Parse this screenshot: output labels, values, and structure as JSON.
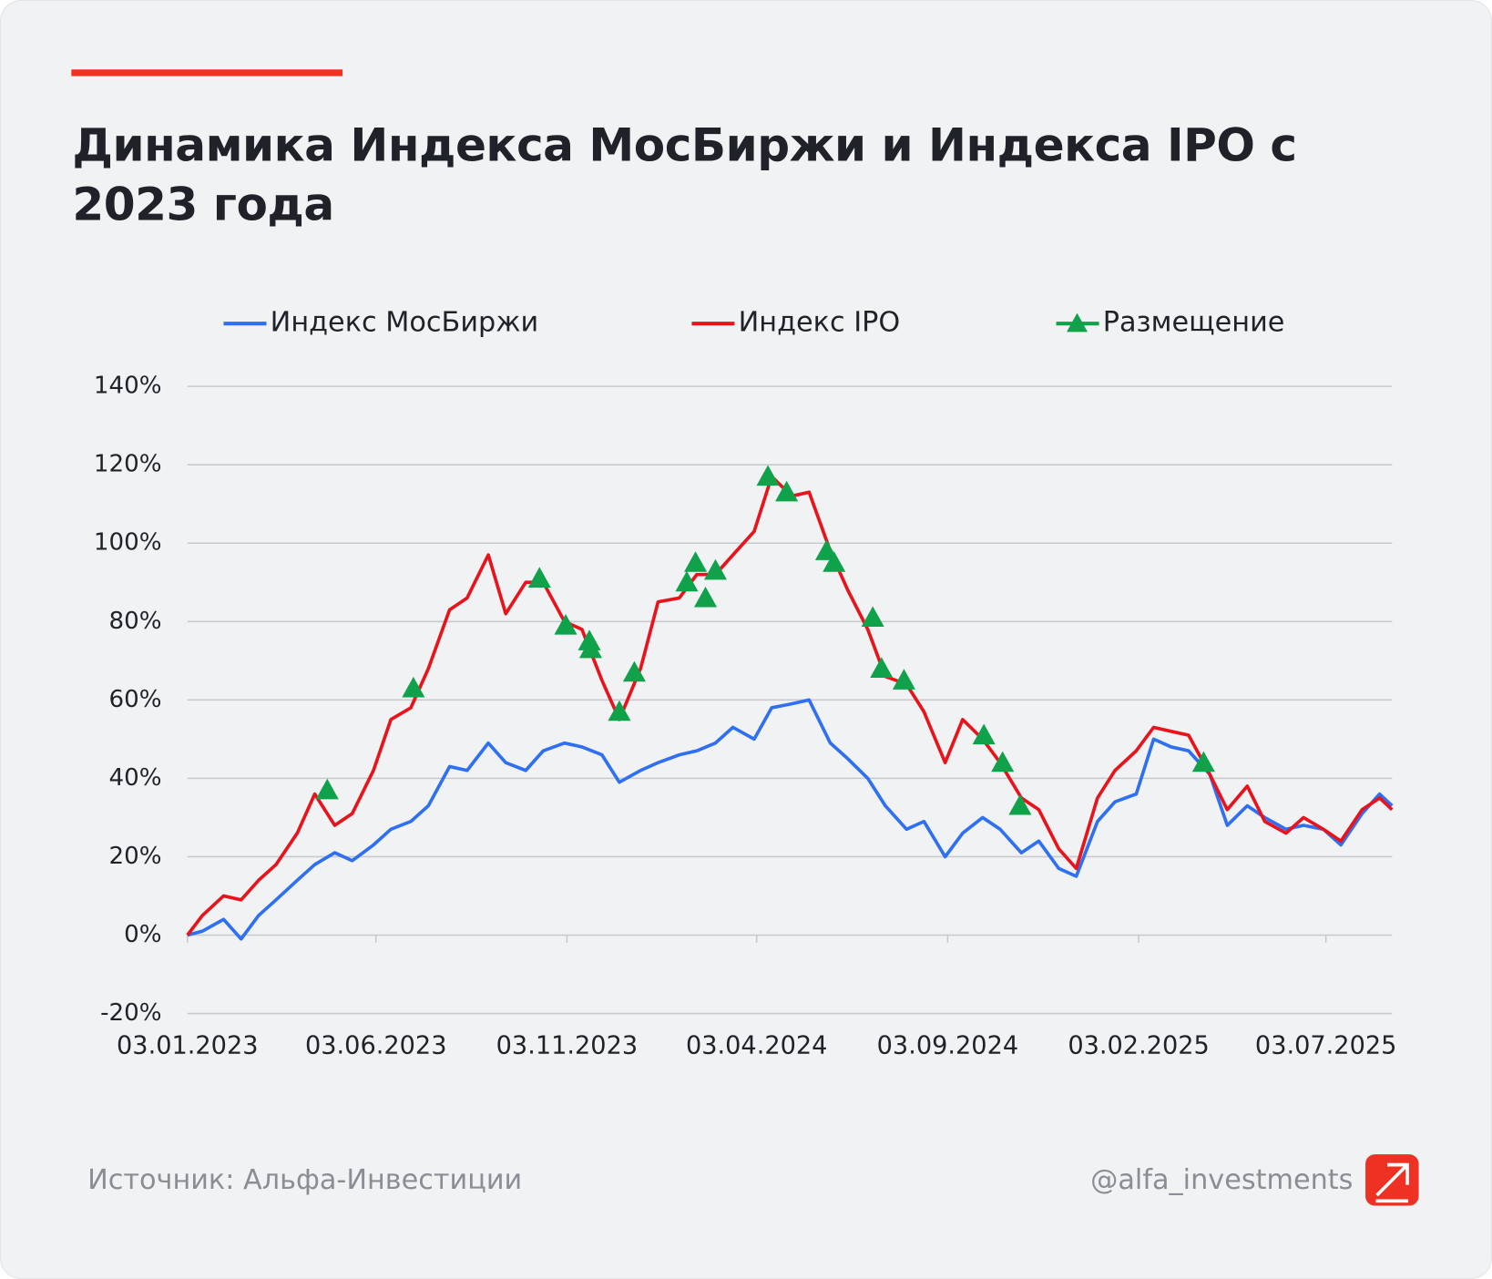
{
  "chart_data": {
    "type": "line",
    "title": "Динамика Индекса МосБиржи и Индекса IPO с 2023 года",
    "xlim": [
      "03.01.2023",
      "25.08.2025"
    ],
    "xticks": [
      "03.01.2023",
      "03.06.2023",
      "03.11.2023",
      "03.04.2024",
      "03.09.2024",
      "03.02.2025",
      "03.07.2025"
    ],
    "ylim": [
      -20,
      140
    ],
    "yticks": [
      {
        "value": -20,
        "label": "-20%"
      },
      {
        "value": 0,
        "label": "0%"
      },
      {
        "value": 20,
        "label": "20%"
      },
      {
        "value": 40,
        "label": "40%"
      },
      {
        "value": 60,
        "label": "60%"
      },
      {
        "value": 80,
        "label": "80%"
      },
      {
        "value": 100,
        "label": "100%"
      },
      {
        "value": 120,
        "label": "120%"
      },
      {
        "value": 140,
        "label": "140%"
      }
    ],
    "grid": true,
    "x": [
      "03.01.2023",
      "15.01.2023",
      "01.02.2023",
      "15.02.2023",
      "01.03.2023",
      "15.03.2023",
      "01.04.2023",
      "15.04.2023",
      "01.05.2023",
      "15.05.2023",
      "01.06.2023",
      "15.06.2023",
      "01.07.2023",
      "15.07.2023",
      "01.08.2023",
      "15.08.2023",
      "01.09.2023",
      "15.09.2023",
      "01.10.2023",
      "15.10.2023",
      "01.11.2023",
      "15.11.2023",
      "01.12.2023",
      "15.12.2023",
      "01.01.2024",
      "15.01.2024",
      "01.02.2024",
      "15.02.2024",
      "01.03.2024",
      "15.03.2024",
      "01.04.2024",
      "15.04.2024",
      "01.05.2024",
      "15.05.2024",
      "01.06.2024",
      "15.06.2024",
      "01.07.2024",
      "15.07.2024",
      "01.08.2024",
      "15.08.2024",
      "01.09.2024",
      "15.09.2024",
      "01.10.2024",
      "15.10.2024",
      "01.11.2024",
      "15.11.2024",
      "01.12.2024",
      "15.12.2024",
      "01.01.2025",
      "15.01.2025",
      "01.02.2025",
      "15.02.2025",
      "01.03.2025",
      "15.03.2025",
      "01.04.2025",
      "15.04.2025",
      "01.05.2025",
      "15.05.2025",
      "01.06.2025",
      "15.06.2025",
      "01.07.2025",
      "15.07.2025",
      "01.08.2025",
      "15.08.2025",
      "25.08.2025"
    ],
    "series": [
      {
        "name": "Индекс МосБиржи",
        "color": "#2f6ff2",
        "values": [
          0,
          1,
          4,
          -1,
          5,
          9,
          14,
          18,
          21,
          19,
          23,
          27,
          29,
          33,
          43,
          42,
          49,
          44,
          42,
          47,
          49,
          48,
          46,
          39,
          42,
          44,
          46,
          47,
          49,
          53,
          50,
          58,
          59,
          60,
          49,
          45,
          40,
          33,
          27,
          29,
          20,
          26,
          30,
          27,
          21,
          24,
          17,
          15,
          29,
          34,
          36,
          50,
          48,
          47,
          41,
          28,
          33,
          30,
          27,
          28,
          27,
          23,
          31,
          36,
          33
        ]
      },
      {
        "name": "Индекс IPO",
        "color": "#e8131b",
        "values": [
          0,
          5,
          10,
          9,
          14,
          18,
          26,
          36,
          28,
          31,
          42,
          55,
          58,
          68,
          83,
          86,
          97,
          82,
          90,
          90,
          80,
          78,
          65,
          55,
          68,
          85,
          86,
          92,
          92,
          97,
          103,
          117,
          112,
          113,
          98,
          88,
          78,
          66,
          64,
          57,
          44,
          55,
          50,
          44,
          35,
          32,
          22,
          17,
          35,
          42,
          47,
          53,
          52,
          51,
          41,
          32,
          38,
          29,
          26,
          30,
          27,
          24,
          32,
          35,
          32
        ]
      },
      {
        "name": "Размещение",
        "type": "scatter",
        "color": "#0fa24a",
        "x": [
          "25.04.2023",
          "03.07.2023",
          "12.10.2023",
          "02.11.2023",
          "21.11.2023",
          "22.11.2023",
          "15.12.2023",
          "27.12.2023",
          "07.02.2024",
          "14.02.2024",
          "22.02.2024",
          "01.03.2024",
          "12.04.2024",
          "27.04.2024",
          "29.05.2024",
          "04.06.2024",
          "05.07.2024",
          "12.07.2024",
          "30.07.2024",
          "02.10.2024",
          "17.10.2024",
          "31.10.2024",
          "27.03.2025"
        ],
        "values": [
          37,
          63,
          91,
          79,
          75,
          73,
          57,
          67,
          90,
          95,
          86,
          93,
          117,
          113,
          98,
          95,
          81,
          68,
          65,
          51,
          44,
          33,
          44
        ]
      }
    ]
  },
  "footer": {
    "source": "Источник: Альфа-Инвестиции",
    "handle": "@alfa_investments"
  }
}
